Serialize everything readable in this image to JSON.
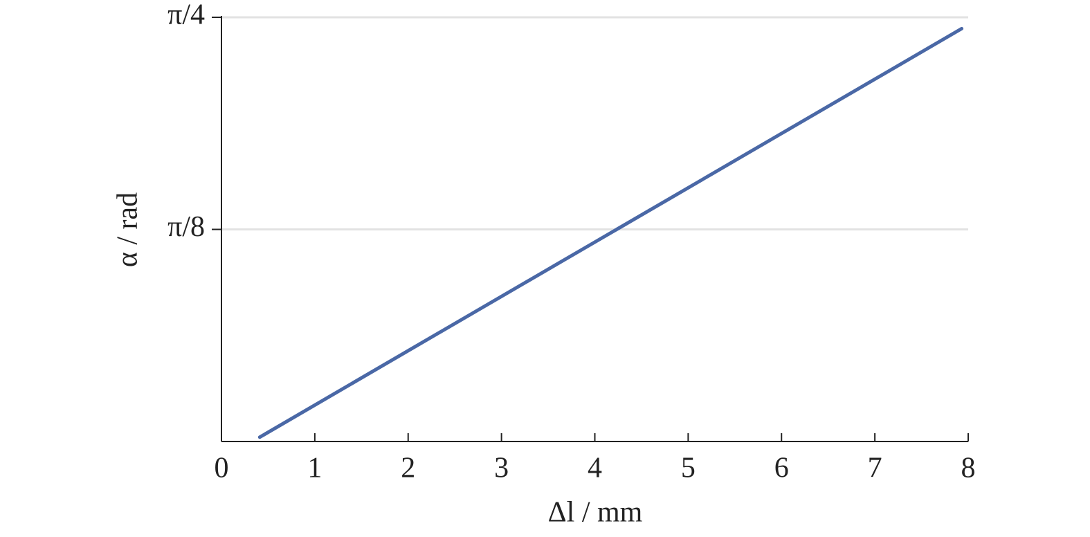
{
  "chart_data": {
    "type": "line",
    "xlabel": "Δl / mm",
    "ylabel": "α / rad",
    "x": [
      0.41,
      2,
      4,
      6,
      7.93
    ],
    "series": [
      {
        "color": "#4a68a6",
        "values": [
          0.008,
          0.168,
          0.369,
          0.57,
          0.764
        ]
      }
    ],
    "xlim": [
      0,
      8
    ],
    "xticks": [
      0,
      1,
      2,
      3,
      4,
      5,
      6,
      7,
      8
    ],
    "ylim": [
      0,
      0.785
    ],
    "yticks": [
      {
        "value": 0.3925,
        "label": "π/8"
      },
      {
        "value": 0.785,
        "label": "π/4"
      }
    ],
    "grid": true
  }
}
